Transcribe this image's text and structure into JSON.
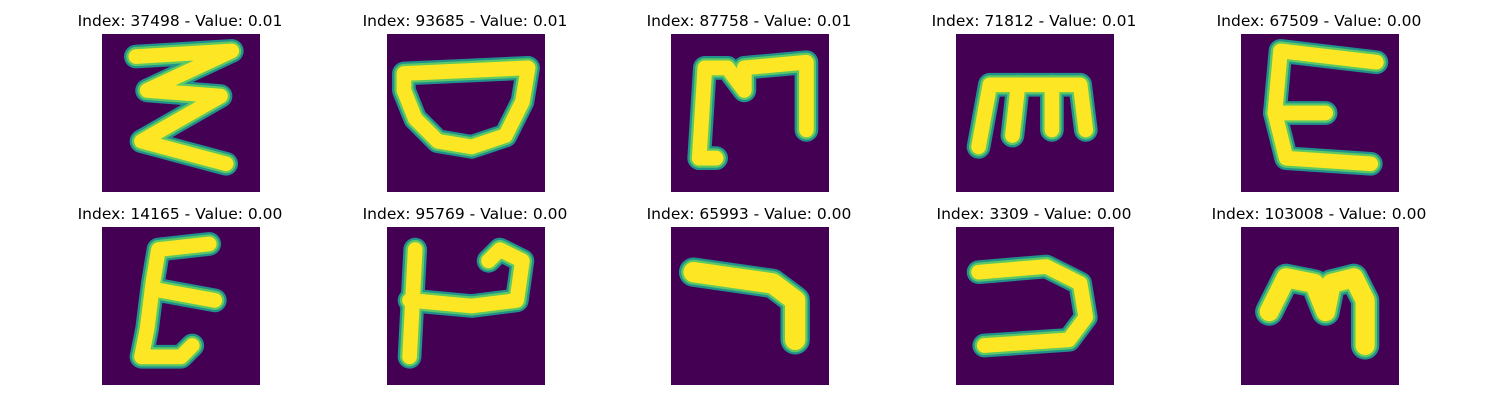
{
  "colors": {
    "background": "#440154",
    "stroke_edge": "#21918c",
    "stroke_mid": "#5ec962",
    "stroke_core": "#fde725"
  },
  "panels": [
    {
      "title": "Index: 37498 - Value: 0.01",
      "glyph": "glyph-zigzag-three"
    },
    {
      "title": "Index: 93685 - Value: 0.01",
      "glyph": "glyph-bowl"
    },
    {
      "title": "Index: 87758 - Value: 0.01",
      "glyph": "glyph-bracket-m"
    },
    {
      "title": "Index: 71812 - Value: 0.01",
      "glyph": "glyph-m"
    },
    {
      "title": "Index: 67509 - Value: 0.00",
      "glyph": "glyph-e"
    },
    {
      "title": "Index: 14165 - Value: 0.00",
      "glyph": "glyph-e-slanted"
    },
    {
      "title": "Index: 95769 - Value: 0.00",
      "glyph": "glyph-h-loop"
    },
    {
      "title": "Index: 65993 - Value: 0.00",
      "glyph": "glyph-hook"
    },
    {
      "title": "Index: 3309 - Value: 0.00",
      "glyph": "glyph-reverse-c"
    },
    {
      "title": "Index: 103008 - Value: 0.00",
      "glyph": "glyph-m-round"
    }
  ]
}
